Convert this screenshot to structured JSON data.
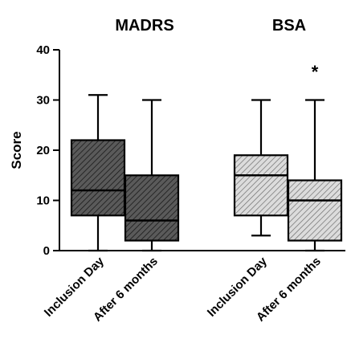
{
  "chart_data": {
    "type": "boxplot",
    "ylabel": "Score",
    "ylim": [
      0,
      40
    ],
    "yticks": [
      0,
      10,
      20,
      30,
      40
    ],
    "grid": false,
    "groups": [
      {
        "title": "MADRS",
        "categories": [
          "Inclusion Day",
          "After 6 months"
        ]
      },
      {
        "title": "BSA",
        "categories": [
          "Inclusion Day",
          "After 6 months"
        ]
      }
    ],
    "series": [
      {
        "group": "MADRS",
        "category": "Inclusion Day",
        "min": 0,
        "q1": 7,
        "median": 12,
        "q3": 22,
        "max": 31,
        "fill": "#555555"
      },
      {
        "group": "MADRS",
        "category": "After 6 months",
        "min": 0,
        "q1": 2,
        "median": 6,
        "q3": 15,
        "max": 30,
        "fill": "#555555"
      },
      {
        "group": "BSA",
        "category": "Inclusion Day",
        "min": 3,
        "q1": 7,
        "median": 15,
        "q3": 19,
        "max": 30,
        "fill": "#d2d2d2"
      },
      {
        "group": "BSA",
        "category": "After 6 months",
        "min": 0,
        "q1": 2,
        "median": 10,
        "q3": 14,
        "max": 30,
        "fill": "#d2d2d2"
      }
    ],
    "annotations": [
      {
        "text": "*",
        "group": "BSA",
        "category": "After 6 months"
      }
    ]
  }
}
